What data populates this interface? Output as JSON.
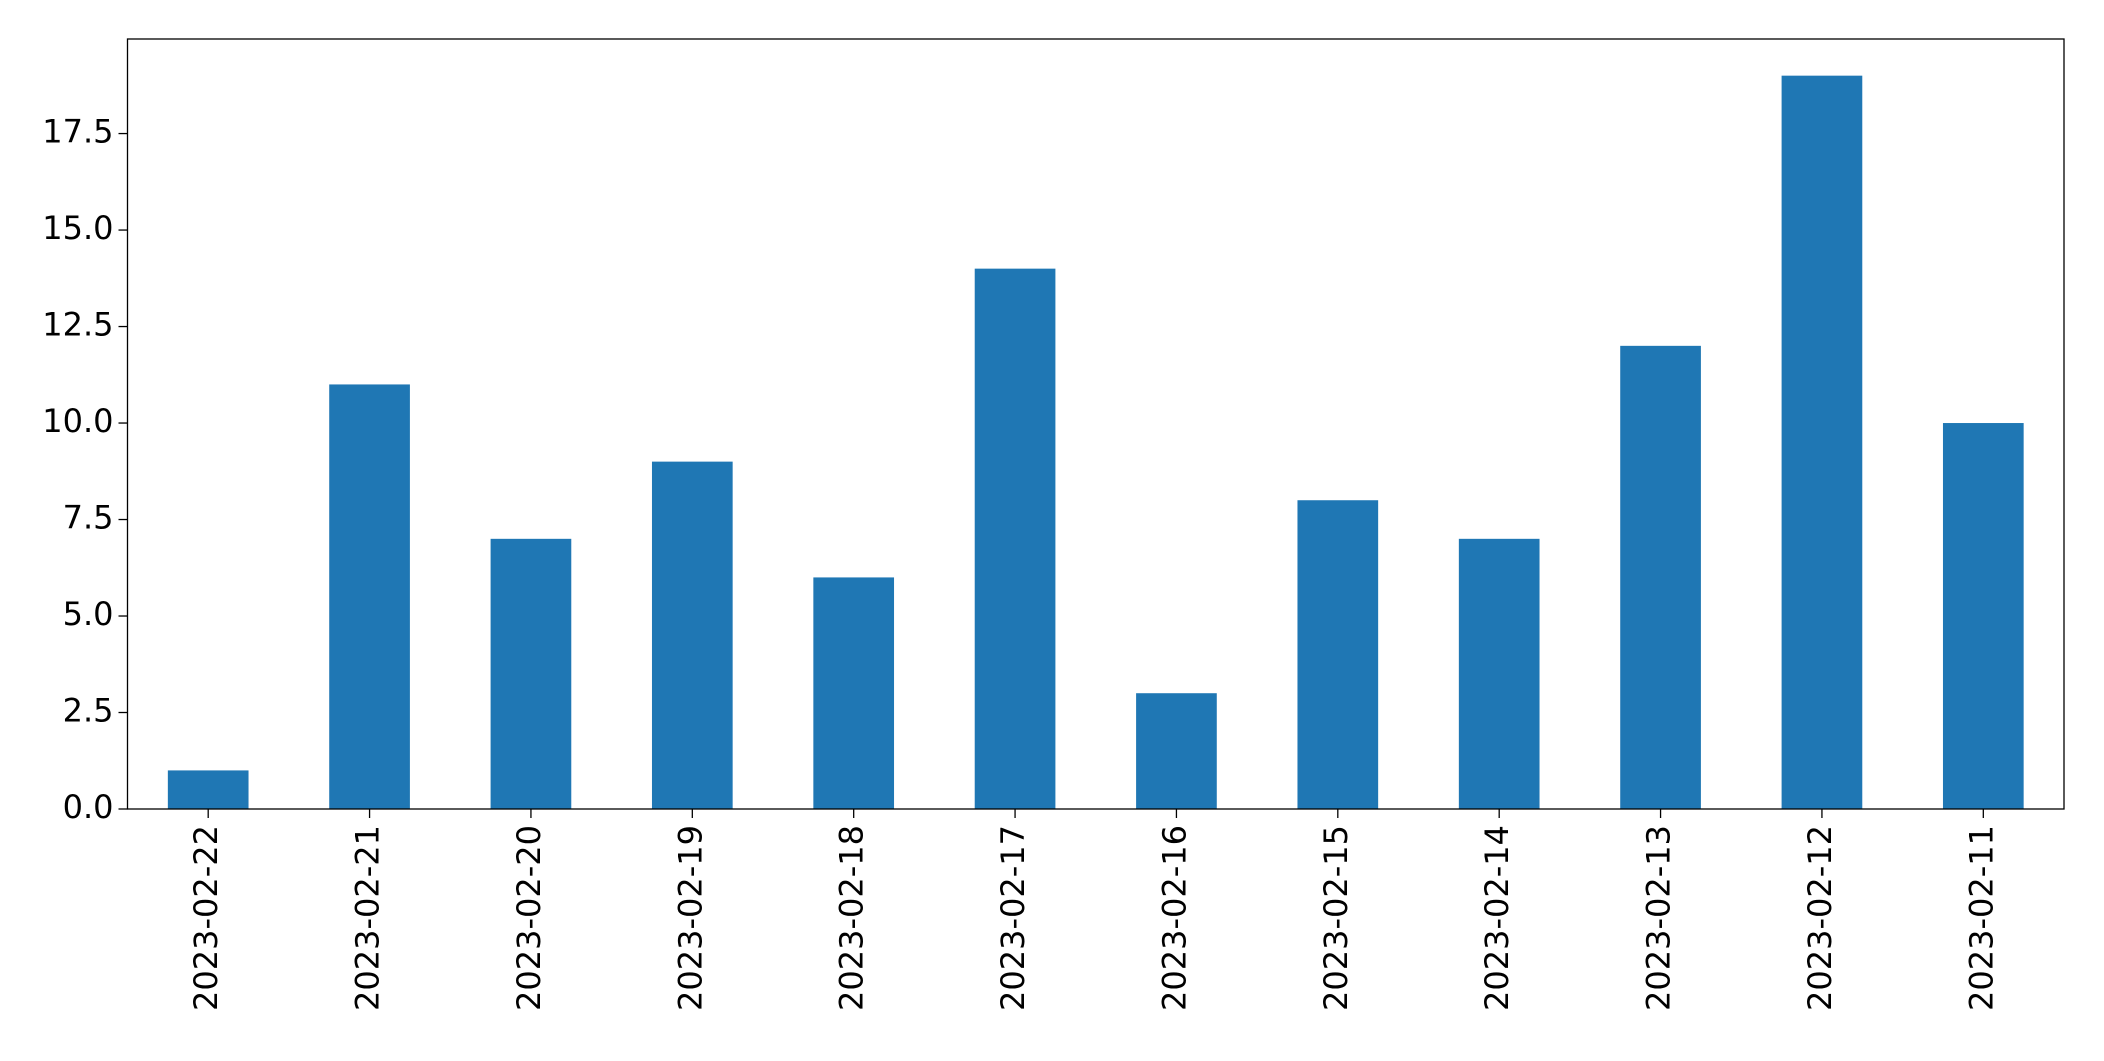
{
  "chart_data": {
    "type": "bar",
    "categories": [
      "2023-02-22",
      "2023-02-21",
      "2023-02-20",
      "2023-02-19",
      "2023-02-18",
      "2023-02-17",
      "2023-02-16",
      "2023-02-15",
      "2023-02-14",
      "2023-02-13",
      "2023-02-12",
      "2023-02-11"
    ],
    "values": [
      1,
      11,
      7,
      9,
      6,
      14,
      3,
      8,
      7,
      12,
      19,
      10
    ],
    "color": "#1f77b4",
    "ylim": [
      0,
      19.95
    ],
    "yticks": [
      {
        "value": 0,
        "label": "0.0"
      },
      {
        "value": 2.5,
        "label": "2.5"
      },
      {
        "value": 5,
        "label": "5.0"
      },
      {
        "value": 7.5,
        "label": "7.5"
      },
      {
        "value": 10,
        "label": "10.0"
      },
      {
        "value": 12.5,
        "label": "12.5"
      },
      {
        "value": 15,
        "label": "15.0"
      },
      {
        "value": 17.5,
        "label": "17.5"
      }
    ],
    "grid": false
  }
}
